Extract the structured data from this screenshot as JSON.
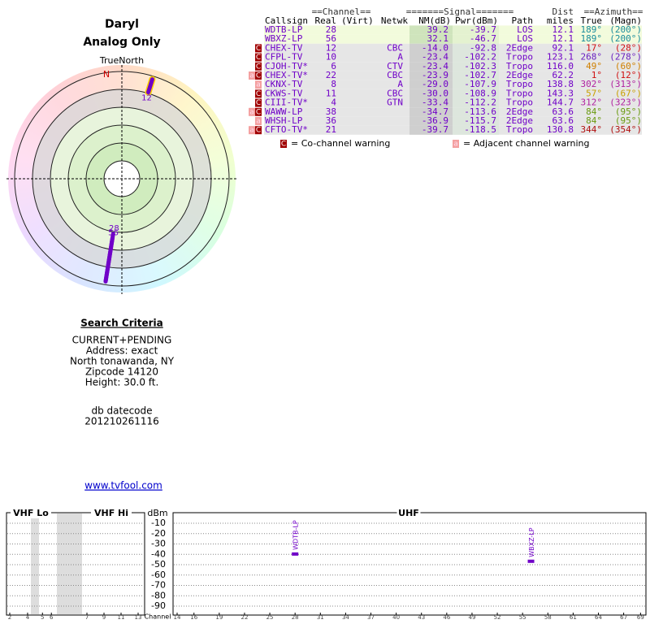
{
  "header": {
    "name": "Daryl",
    "subtitle": "Analog Only"
  },
  "radar": {
    "north_label": "TrueNorth",
    "n": "N",
    "color": "#7000c8",
    "plots": [
      {
        "label": "12",
        "azimuth": 17,
        "nm": -14.0
      },
      {
        "label": "28",
        "azimuth": 189,
        "nm": 39.2
      },
      {
        "label": "56",
        "azimuth": 189,
        "nm": 32.1
      }
    ]
  },
  "criteria": {
    "title": "Search Criteria",
    "lines": [
      "CURRENT+PENDING",
      "Address: exact",
      "North tonawanda, NY",
      "Zipcode 14120",
      "Height: 30.0 ft."
    ],
    "datecode_label": "db datecode",
    "datecode": "201210261116",
    "link": "www.tvfool.com"
  },
  "table": {
    "group_headers": [
      "==Channel==",
      "=======Signal=======",
      "Dist",
      "==Azimuth=="
    ],
    "headers": [
      "Callsign",
      "Real",
      "(Virt)",
      "Netwk",
      "NM(dB)",
      "Pwr(dBm)",
      "Path",
      "miles",
      "True",
      "(Magn)"
    ],
    "rows": [
      {
        "callsign": "WDTB-LP",
        "real": "28",
        "nm": "39.2",
        "pwr": "-39.7",
        "path": "LOS",
        "dist": "12.1",
        "true": "189°",
        "magn": "(200°)",
        "color": "#1a8c9c"
      },
      {
        "callsign": "WBXZ-LP",
        "real": "56",
        "nm": "32.1",
        "pwr": "-46.7",
        "path": "LOS",
        "dist": "12.1",
        "true": "189°",
        "magn": "(200°)",
        "color": "#1a8c9c"
      },
      {
        "flags": [
          "C"
        ],
        "callsign": "CHEX-TV",
        "real": "12",
        "netwk": "CBC",
        "nm": "-14.0",
        "pwr": "-92.8",
        "path": "2Edge",
        "dist": "92.1",
        "true": "17°",
        "magn": "(28°)",
        "color": "#d01010"
      },
      {
        "flags": [
          "C"
        ],
        "callsign": "CFPL-TV",
        "real": "10",
        "netwk": "A",
        "nm": "-23.4",
        "pwr": "-102.2",
        "path": "Tropo",
        "dist": "123.1",
        "true": "268°",
        "magn": "(278°)",
        "color": "#6a1fc0"
      },
      {
        "flags": [
          "C"
        ],
        "callsign": "CJOH-TV*",
        "real": "6",
        "netwk": "CTV",
        "nm": "-23.4",
        "pwr": "-102.3",
        "path": "Tropo",
        "dist": "116.0",
        "true": "49°",
        "magn": "(60°)",
        "color": "#d08000"
      },
      {
        "flags": [
          "a",
          "C"
        ],
        "callsign": "CHEX-TV*",
        "real": "22",
        "netwk": "CBC",
        "nm": "-23.9",
        "pwr": "-102.7",
        "path": "2Edge",
        "dist": "62.2",
        "true": "1°",
        "magn": "(12°)",
        "color": "#d01010"
      },
      {
        "flags": [
          "a"
        ],
        "callsign": "CKNX-TV",
        "real": "8",
        "netwk": "A",
        "nm": "-29.0",
        "pwr": "-107.9",
        "path": "Tropo",
        "dist": "138.8",
        "true": "302°",
        "magn": "(313°)",
        "color": "#b01fa0"
      },
      {
        "flags": [
          "C"
        ],
        "callsign": "CKWS-TV",
        "real": "11",
        "netwk": "CBC",
        "nm": "-30.0",
        "pwr": "-108.9",
        "path": "Tropo",
        "dist": "143.3",
        "true": "57°",
        "magn": "(67°)",
        "color": "#c8a000"
      },
      {
        "flags": [
          "C"
        ],
        "callsign": "CIII-TV*",
        "real": "4",
        "netwk": "GTN",
        "nm": "-33.4",
        "pwr": "-112.2",
        "path": "Tropo",
        "dist": "144.7",
        "true": "312°",
        "magn": "(323°)",
        "color": "#b01fa0"
      },
      {
        "flags": [
          "a",
          "C"
        ],
        "callsign": "WAWW-LP",
        "real": "38",
        "nm": "-34.7",
        "pwr": "-113.6",
        "path": "2Edge",
        "dist": "63.6",
        "true": "84°",
        "magn": "(95°)",
        "color": "#6a9a10"
      },
      {
        "flags": [
          "a"
        ],
        "callsign": "WHSH-LP",
        "real": "36",
        "nm": "-36.9",
        "pwr": "-115.7",
        "path": "2Edge",
        "dist": "63.6",
        "true": "84°",
        "magn": "(95°)",
        "color": "#6a9a10"
      },
      {
        "flags": [
          "a",
          "C"
        ],
        "callsign": "CFTO-TV*",
        "real": "21",
        "nm": "-39.7",
        "pwr": "-118.5",
        "path": "Tropo",
        "dist": "130.8",
        "true": "344°",
        "magn": "(354°)",
        "color": "#b01010"
      }
    ]
  },
  "legend": [
    {
      "icon": "C",
      "text": "= Co-channel warning"
    },
    {
      "icon": "a",
      "text": "= Adjacent channel warning"
    }
  ],
  "spectrum": {
    "y_label": "dBm",
    "x_label": "Channel",
    "ylim": [
      -100,
      0
    ],
    "yticks": [
      -10,
      -20,
      -30,
      -40,
      -50,
      -60,
      -70,
      -80,
      -90
    ],
    "panels": [
      {
        "title": "VHF Lo",
        "ticks": [
          2,
          4,
          5,
          6
        ]
      },
      {
        "title": "VHF Hi",
        "ticks": [
          7,
          9,
          11,
          13
        ]
      },
      {
        "title": "UHF",
        "ticks": [
          14,
          16,
          19,
          22,
          25,
          28,
          31,
          34,
          37,
          40,
          43,
          46,
          49,
          52,
          55,
          58,
          61,
          64,
          67,
          69
        ]
      }
    ],
    "color": "#7000c8",
    "signals": [
      {
        "name": "WDTB-LP",
        "channel": 28,
        "value": -39.7
      },
      {
        "name": "WBXZ-LP",
        "channel": 56,
        "value": -46.7
      }
    ]
  }
}
